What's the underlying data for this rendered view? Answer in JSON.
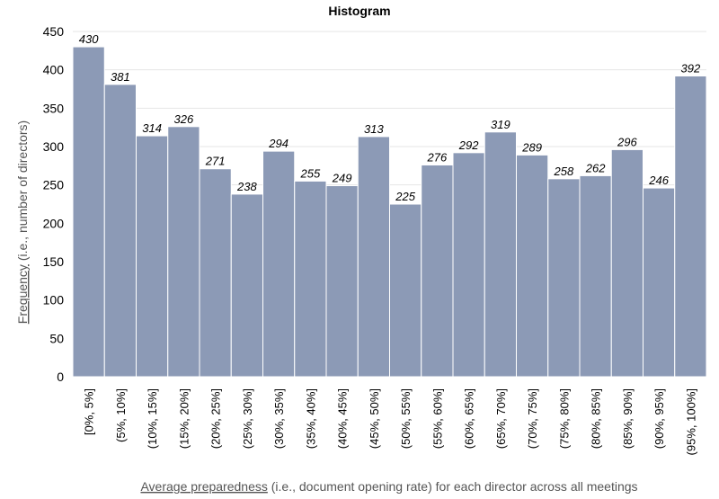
{
  "chart_data": {
    "type": "bar",
    "title": "Histogram",
    "ylabel_underlined": "Frequency",
    "ylabel_rest": " (i.e., number of directors)",
    "xlabel_underlined": "Average preparedness",
    "xlabel_rest": " (i.e., document opening rate) for each director across all meetings",
    "categories": [
      "[0%, 5%]",
      "(5%, 10%]",
      "(10%, 15%]",
      "(15%, 20%]",
      "(20%, 25%]",
      "(25%, 30%]",
      "(30%, 35%]",
      "(35%, 40%]",
      "(40%, 45%]",
      "(45%, 50%]",
      "(50%, 55%]",
      "(55%, 60%]",
      "(60%, 65%]",
      "(65%, 70%]",
      "(70%, 75%]",
      "(75%, 80%]",
      "(80%, 85%]",
      "(85%, 90%]",
      "(90%, 95%]",
      "(95%, 100%]"
    ],
    "values": [
      430,
      381,
      314,
      326,
      271,
      238,
      294,
      255,
      249,
      313,
      225,
      276,
      292,
      319,
      289,
      258,
      262,
      296,
      246,
      392
    ],
    "ylim": [
      0,
      450
    ],
    "yticks": [
      0,
      50,
      100,
      150,
      200,
      250,
      300,
      350,
      400,
      450
    ],
    "grid": true,
    "bar_color": "#8c9ab6"
  }
}
